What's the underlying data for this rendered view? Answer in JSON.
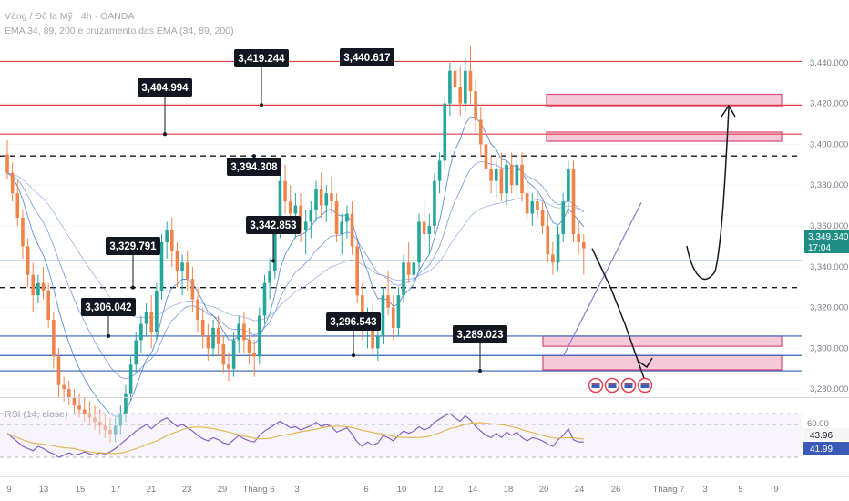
{
  "header": {
    "symbol_line": "Vàng / Đô la Mỹ · 4h · OANDA",
    "indicator_line": "EMA 34, 89, 200 e cruzamento das EMA (34, 89, 200)"
  },
  "rsi_panel": {
    "label": "RSI (14, close)",
    "value_label": "43.96",
    "ma_label": "41.99",
    "level_label": "60.00"
  },
  "price_badge": {
    "price": "3,349.340",
    "timer": "17:04"
  },
  "colors": {
    "up": "#26a69a",
    "down": "#f0834a",
    "resistance": "#e53945",
    "support": "#2f62b8",
    "zone_fill": "#f3bfd0",
    "zone_stroke": "#d84a7c",
    "trend": "#8b7bd3",
    "rsi_line": "#7e57c2",
    "rsi_ma": "#e0b44a"
  },
  "chart_data": {
    "type": "candlestick",
    "instrument": "XAUUSD 4h",
    "y_axis": {
      "ticks": [
        3280,
        3300,
        3320,
        3340,
        3360,
        3380,
        3400,
        3420,
        3440
      ],
      "tick_labels": [
        "3,280.000",
        "3,300.000",
        "3,320.000",
        "3,340.000",
        "3,360.000",
        "3,380.000",
        "3,400.000",
        "3,420.000",
        "3,440.000"
      ]
    },
    "x_axis": {
      "labels": [
        "9",
        "13",
        "15",
        "17",
        "21",
        "23",
        "29",
        "Tháng 6",
        "3",
        "6",
        "10",
        "12",
        "14",
        "18",
        "20",
        "24",
        "26",
        "Tháng 7",
        "3",
        "5",
        "9"
      ]
    },
    "ohlc": [
      [
        3395,
        3402,
        3383,
        3386
      ],
      [
        3386,
        3391,
        3372,
        3376
      ],
      [
        3376,
        3382,
        3360,
        3364
      ],
      [
        3364,
        3368,
        3344,
        3350
      ],
      [
        3350,
        3354,
        3330,
        3336
      ],
      [
        3336,
        3342,
        3318,
        3326
      ],
      [
        3326,
        3336,
        3322,
        3332
      ],
      [
        3332,
        3340,
        3324,
        3328
      ],
      [
        3328,
        3332,
        3310,
        3314
      ],
      [
        3314,
        3318,
        3290,
        3296
      ],
      [
        3296,
        3300,
        3276,
        3282
      ],
      [
        3282,
        3286,
        3274,
        3280
      ],
      [
        3280,
        3284,
        3272,
        3276
      ],
      [
        3276,
        3280,
        3268,
        3272
      ],
      [
        3272,
        3278,
        3266,
        3270
      ],
      [
        3270,
        3276,
        3264,
        3268
      ],
      [
        3268,
        3274,
        3262,
        3266
      ],
      [
        3266,
        3272,
        3260,
        3264
      ],
      [
        3264,
        3270,
        3258,
        3262
      ],
      [
        3262,
        3268,
        3256,
        3260
      ],
      [
        3260,
        3266,
        3254,
        3258
      ],
      [
        3258,
        3266,
        3254,
        3262
      ],
      [
        3262,
        3272,
        3258,
        3268
      ],
      [
        3268,
        3282,
        3264,
        3278
      ],
      [
        3278,
        3296,
        3274,
        3292
      ],
      [
        3292,
        3308,
        3288,
        3304
      ],
      [
        3304,
        3316,
        3298,
        3312
      ],
      [
        3312,
        3322,
        3306,
        3318
      ],
      [
        3318,
        3326,
        3300,
        3308
      ],
      [
        3308,
        3332,
        3304,
        3328
      ],
      [
        3328,
        3356,
        3324,
        3352
      ],
      [
        3352,
        3362,
        3344,
        3358
      ],
      [
        3358,
        3364,
        3340,
        3348
      ],
      [
        3348,
        3352,
        3330,
        3338
      ],
      [
        3338,
        3346,
        3326,
        3342
      ],
      [
        3342,
        3348,
        3328,
        3334
      ],
      [
        3334,
        3340,
        3318,
        3324
      ],
      [
        3324,
        3330,
        3308,
        3314
      ],
      [
        3314,
        3320,
        3300,
        3306
      ],
      [
        3306,
        3312,
        3294,
        3300
      ],
      [
        3300,
        3314,
        3296,
        3310
      ],
      [
        3310,
        3316,
        3296,
        3302
      ],
      [
        3302,
        3306,
        3288,
        3292
      ],
      [
        3292,
        3298,
        3284,
        3290
      ],
      [
        3290,
        3308,
        3286,
        3304
      ],
      [
        3304,
        3316,
        3298,
        3312
      ],
      [
        3312,
        3318,
        3298,
        3304
      ],
      [
        3304,
        3310,
        3292,
        3298
      ],
      [
        3298,
        3304,
        3286,
        3296
      ],
      [
        3296,
        3320,
        3292,
        3316
      ],
      [
        3316,
        3336,
        3312,
        3332
      ],
      [
        3332,
        3344,
        3324,
        3338
      ],
      [
        3338,
        3362,
        3334,
        3358
      ],
      [
        3358,
        3386,
        3354,
        3382
      ],
      [
        3382,
        3390,
        3366,
        3372
      ],
      [
        3372,
        3380,
        3360,
        3366
      ],
      [
        3366,
        3376,
        3354,
        3370
      ],
      [
        3370,
        3376,
        3352,
        3358
      ],
      [
        3358,
        3368,
        3346,
        3362
      ],
      [
        3362,
        3372,
        3354,
        3368
      ],
      [
        3368,
        3382,
        3362,
        3378
      ],
      [
        3378,
        3386,
        3364,
        3370
      ],
      [
        3370,
        3380,
        3362,
        3376
      ],
      [
        3376,
        3384,
        3366,
        3372
      ],
      [
        3372,
        3376,
        3352,
        3356
      ],
      [
        3356,
        3366,
        3346,
        3362
      ],
      [
        3362,
        3370,
        3354,
        3366
      ],
      [
        3366,
        3372,
        3346,
        3350
      ],
      [
        3350,
        3354,
        3322,
        3326
      ],
      [
        3326,
        3332,
        3304,
        3310
      ],
      [
        3310,
        3320,
        3300,
        3316
      ],
      [
        3316,
        3322,
        3296,
        3300
      ],
      [
        3300,
        3312,
        3294,
        3306
      ],
      [
        3306,
        3330,
        3302,
        3326
      ],
      [
        3326,
        3338,
        3316,
        3320
      ],
      [
        3320,
        3326,
        3304,
        3310
      ],
      [
        3310,
        3330,
        3306,
        3326
      ],
      [
        3326,
        3346,
        3322,
        3342
      ],
      [
        3342,
        3352,
        3332,
        3336
      ],
      [
        3336,
        3346,
        3330,
        3342
      ],
      [
        3342,
        3366,
        3338,
        3362
      ],
      [
        3362,
        3372,
        3350,
        3356
      ],
      [
        3356,
        3366,
        3346,
        3360
      ],
      [
        3360,
        3386,
        3356,
        3382
      ],
      [
        3382,
        3396,
        3376,
        3392
      ],
      [
        3392,
        3424,
        3388,
        3420
      ],
      [
        3420,
        3440,
        3414,
        3436
      ],
      [
        3436,
        3446,
        3422,
        3428
      ],
      [
        3428,
        3438,
        3414,
        3420
      ],
      [
        3420,
        3442,
        3416,
        3436
      ],
      [
        3436,
        3448,
        3420,
        3426
      ],
      [
        3426,
        3432,
        3406,
        3412
      ],
      [
        3412,
        3418,
        3394,
        3400
      ],
      [
        3400,
        3406,
        3382,
        3388
      ],
      [
        3388,
        3394,
        3376,
        3382
      ],
      [
        3382,
        3392,
        3374,
        3388
      ],
      [
        3388,
        3396,
        3372,
        3376
      ],
      [
        3376,
        3392,
        3370,
        3390
      ],
      [
        3390,
        3396,
        3376,
        3380
      ],
      [
        3380,
        3394,
        3374,
        3390
      ],
      [
        3390,
        3396,
        3372,
        3376
      ],
      [
        3376,
        3382,
        3362,
        3366
      ],
      [
        3366,
        3376,
        3360,
        3372
      ],
      [
        3372,
        3376,
        3364,
        3368
      ],
      [
        3368,
        3372,
        3356,
        3360
      ],
      [
        3360,
        3366,
        3342,
        3346
      ],
      [
        3346,
        3352,
        3336,
        3342
      ],
      [
        3342,
        3360,
        3338,
        3356
      ],
      [
        3356,
        3376,
        3352,
        3372
      ],
      [
        3372,
        3392,
        3366,
        3388
      ],
      [
        3388,
        3392,
        3352,
        3356
      ],
      [
        3356,
        3362,
        3346,
        3352
      ],
      [
        3352,
        3356,
        3336,
        3349
      ]
    ],
    "price_labels": [
      {
        "value": 3440.617,
        "text": "3,440.617"
      },
      {
        "value": 3419.244,
        "text": "3,419.244"
      },
      {
        "value": 3404.994,
        "text": "3,404.994"
      },
      {
        "value": 3394.308,
        "text": "3,394.308"
      },
      {
        "value": 3342.853,
        "text": "3,342.853"
      },
      {
        "value": 3329.791,
        "text": "3,329.791"
      },
      {
        "value": 3306.042,
        "text": "3,306.042"
      },
      {
        "value": 3296.543,
        "text": "3,296.543"
      },
      {
        "value": 3289.023,
        "text": "3,289.023"
      }
    ],
    "resistance_lines": [
      3440.6,
      3419.2,
      3405.0
    ],
    "dashed_lines": [
      3394.3,
      3329.8
    ],
    "support_lines": [
      3342.9,
      3306.0,
      3296.5,
      3289.0
    ],
    "zones": [
      {
        "low": 3418.5,
        "high": 3424.5
      },
      {
        "low": 3401.5,
        "high": 3406.0
      },
      {
        "low": 3301.0,
        "high": 3306.0
      },
      {
        "low": 3289.5,
        "high": 3296.5
      }
    ],
    "trendline": {
      "from": [
        108,
        3296
      ],
      "to": [
        161,
        3367
      ]
    },
    "projection_down": [
      [
        3349,
        3329
      ],
      [
        3312,
        3330
      ],
      [
        3288,
        3319
      ]
    ],
    "projection_up": [
      [
        3342,
        3332
      ],
      [
        3330,
        3402
      ]
    ],
    "rsi": {
      "levels": [
        70,
        60,
        30
      ],
      "ylim": [
        25,
        75
      ],
      "values": [
        52,
        48,
        44,
        40,
        38,
        36,
        40,
        38,
        35,
        33,
        30,
        32,
        34,
        32,
        33,
        35,
        33,
        32,
        34,
        33,
        35,
        38,
        42,
        46,
        50,
        54,
        57,
        60,
        56,
        60,
        64,
        66,
        62,
        58,
        60,
        57,
        54,
        50,
        47,
        45,
        48,
        46,
        43,
        42,
        46,
        50,
        47,
        45,
        44,
        50,
        54,
        57,
        60,
        63,
        60,
        57,
        58,
        55,
        57,
        59,
        62,
        58,
        60,
        58,
        53,
        55,
        57,
        51,
        44,
        40,
        44,
        41,
        43,
        50,
        48,
        45,
        50,
        54,
        52,
        54,
        58,
        55,
        57,
        62,
        65,
        68,
        70,
        66,
        63,
        68,
        64,
        58,
        54,
        50,
        48,
        52,
        48,
        53,
        50,
        53,
        48,
        45,
        48,
        47,
        45,
        42,
        40,
        46,
        50,
        56,
        46,
        44,
        43.96
      ],
      "ma_last": 41.99
    }
  }
}
